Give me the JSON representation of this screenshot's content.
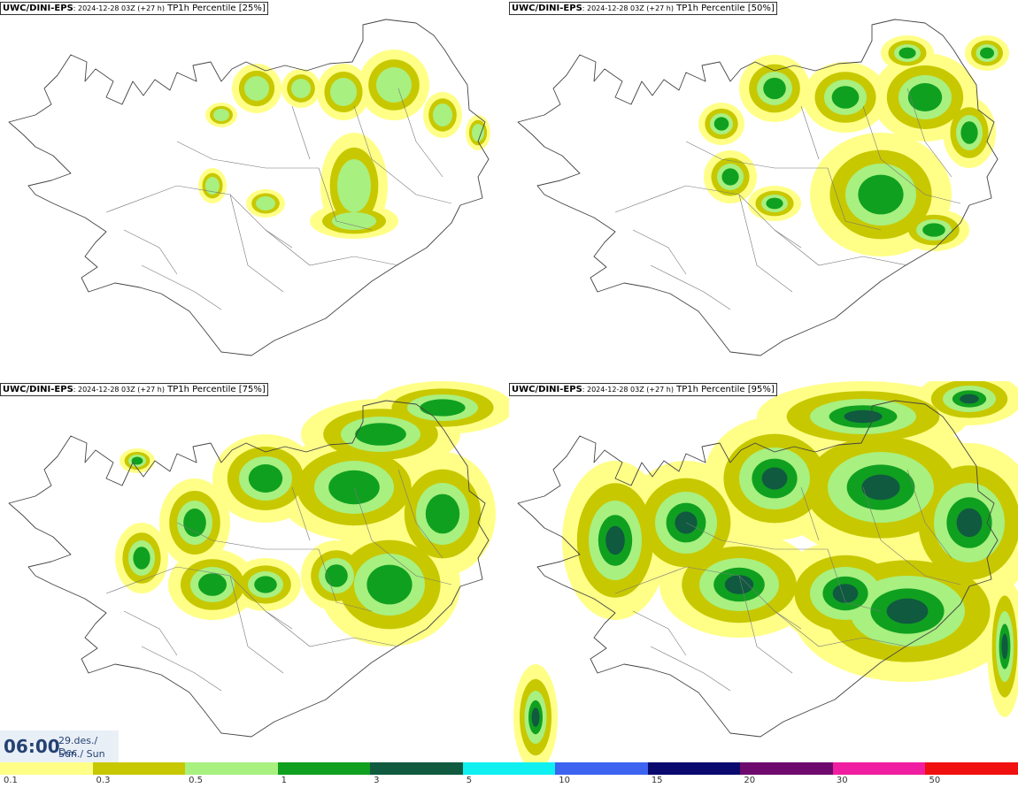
{
  "panels": [
    {
      "model": "UWC/DINI-EPS",
      "run": ": 2024-12-28 03Z (+27 h)",
      "title": " TP1h Percentile [25%]"
    },
    {
      "model": "UWC/DINI-EPS",
      "run": ": 2024-12-28 03Z (+27 h)",
      "title": " TP1h Percentile [50%]"
    },
    {
      "model": "UWC/DINI-EPS",
      "run": ": 2024-12-28 03Z (+27 h)",
      "title": " TP1h Percentile [75%]"
    },
    {
      "model": "UWC/DINI-EPS",
      "run": ": 2024-12-28 03Z (+27 h)",
      "title": " TP1h Percentile [95%]"
    }
  ],
  "valid_time": {
    "time": "06:00",
    "date": "29.des./ Dec",
    "day": "Sun./ Sun"
  },
  "legend": [
    {
      "label": "0.1",
      "color": "#ffff88"
    },
    {
      "label": "0.3",
      "color": "#c8c800"
    },
    {
      "label": "0.5",
      "color": "#a8f080"
    },
    {
      "label": "1",
      "color": "#10a020"
    },
    {
      "label": "3",
      "color": "#105a40"
    },
    {
      "label": "5",
      "color": "#10f0f0"
    },
    {
      "label": "10",
      "color": "#3c64f0"
    },
    {
      "label": "15",
      "color": "#0a0a6e"
    },
    {
      "label": "20",
      "color": "#6e0a6e"
    },
    {
      "label": "30",
      "color": "#f01ea0"
    },
    {
      "label": "50",
      "color": "#f01010"
    }
  ]
}
